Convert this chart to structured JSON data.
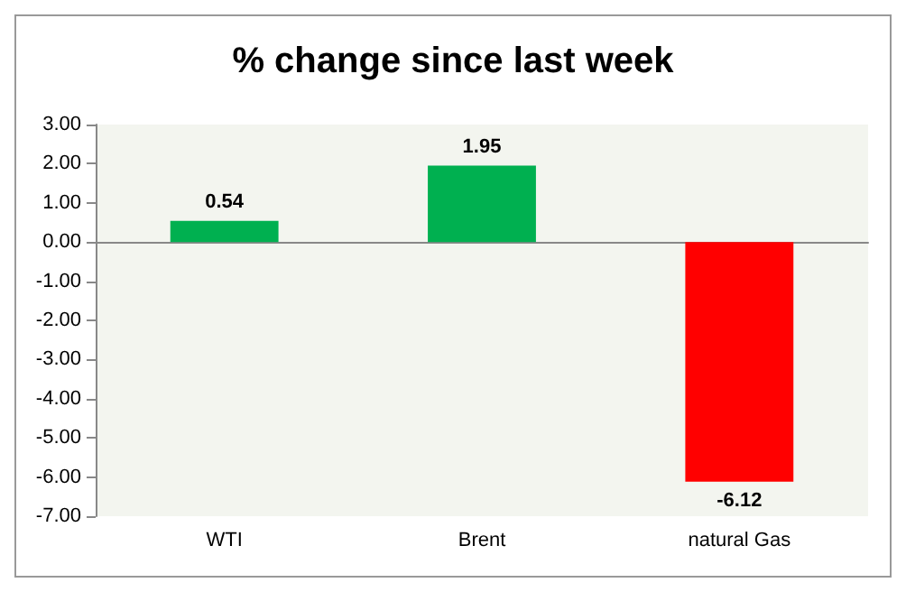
{
  "chart_data": {
    "type": "bar",
    "title": "% change since last week",
    "categories": [
      "WTI",
      "Brent",
      "natural Gas"
    ],
    "values": [
      0.54,
      1.95,
      -6.12
    ],
    "colors": [
      "#00b050",
      "#00b050",
      "#ff0000"
    ],
    "ylim": [
      -7,
      3
    ],
    "yticks": [
      {
        "value": -7,
        "label": "-7.00"
      },
      {
        "value": -6,
        "label": "-6.00"
      },
      {
        "value": -5,
        "label": "-5.00"
      },
      {
        "value": -4,
        "label": "-4.00"
      },
      {
        "value": -3,
        "label": "-3.00"
      },
      {
        "value": -2,
        "label": "-2.00"
      },
      {
        "value": -1,
        "label": "-1.00"
      },
      {
        "value": 0,
        "label": "0.00"
      },
      {
        "value": 1,
        "label": "1.00"
      },
      {
        "value": 2,
        "label": "2.00"
      },
      {
        "value": 3,
        "label": "3.00"
      }
    ],
    "data_labels": true
  }
}
